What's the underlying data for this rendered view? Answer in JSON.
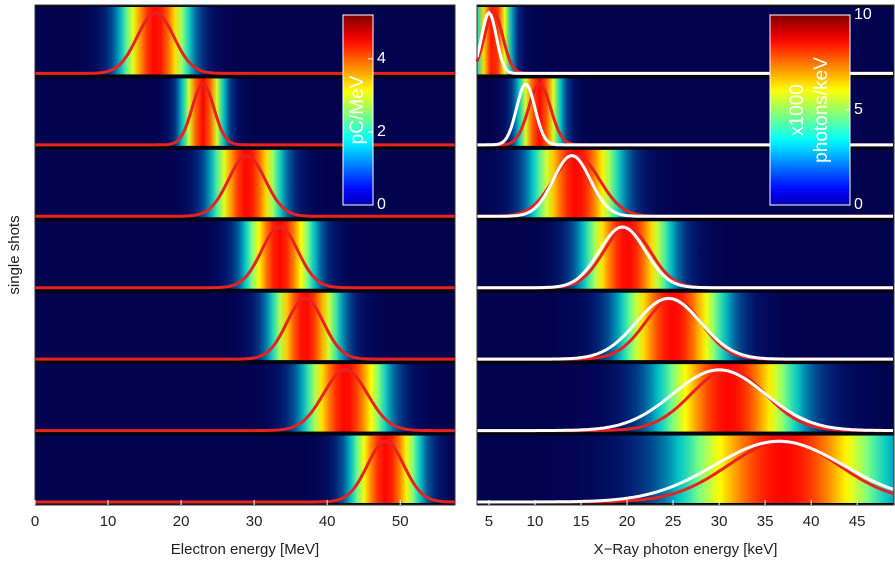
{
  "chart_data": [
    {
      "type": "spectra",
      "x_label": "Electron energy [MeV]",
      "y_label": "single shots",
      "xlim": [
        0,
        57.5
      ],
      "xticks": [
        0,
        10,
        20,
        30,
        40,
        50
      ],
      "colorbar": {
        "label": "pC/MeV",
        "lim": [
          0,
          5.2
        ],
        "ticks": [
          0,
          2,
          4
        ]
      },
      "series": [
        {
          "color": "#e8231f",
          "peaks": [
            16.5,
            23,
            29,
            33.5,
            37,
            42.5,
            48
          ],
          "widths": [
            2.5,
            1.5,
            2.5,
            2.5,
            2.5,
            3,
            2.5
          ]
        }
      ]
    },
    {
      "type": "spectra",
      "x_label": "X−Ray photon energy [keV]",
      "xlim": [
        3.7,
        49
      ],
      "xticks": [
        5,
        10,
        15,
        20,
        25,
        30,
        35,
        40,
        45
      ],
      "colorbar": {
        "label": [
          "x1000",
          "photons/keV"
        ],
        "lim": [
          0,
          10
        ],
        "ticks": [
          0,
          5,
          10
        ]
      },
      "series": [
        {
          "color": "#e8231f",
          "peaks": [
            5.5,
            10.5,
            14.5,
            20,
            25,
            31,
            37
          ],
          "widths": [
            1,
            1.2,
            2.5,
            2.5,
            3,
            4,
            6
          ]
        },
        {
          "color": "#ffffff",
          "peaks": [
            5,
            9,
            14,
            19.5,
            24.5,
            30,
            36.5
          ],
          "widths": [
            0.8,
            1,
            2,
            2.5,
            3.5,
            5,
            7
          ]
        }
      ]
    }
  ]
}
